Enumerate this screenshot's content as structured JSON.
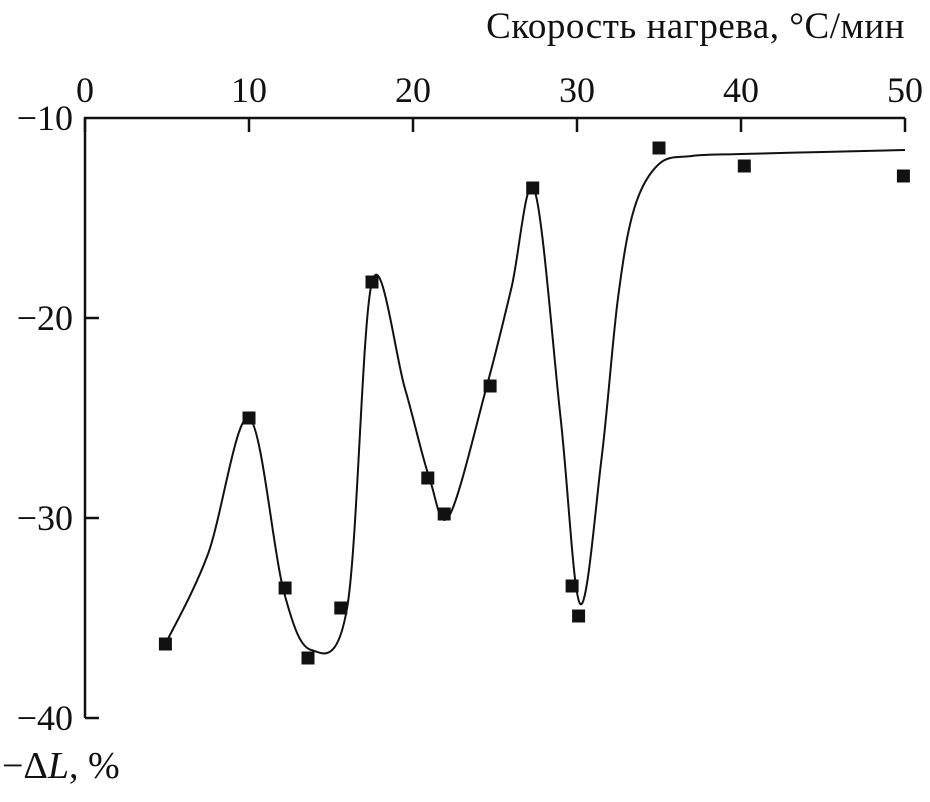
{
  "chart_data": {
    "type": "scatter",
    "title": "Скорость нагрева, °С/мин",
    "ylabel_parts": {
      "prefix": "−Δ",
      "symbol": "L",
      "suffix": ", %"
    },
    "xlim": [
      0,
      50
    ],
    "ylim": [
      -40,
      -10
    ],
    "x_ticks": [
      0,
      10,
      20,
      30,
      40,
      50
    ],
    "x_tick_labels": [
      "0",
      "10",
      "20",
      "30",
      "40",
      "50"
    ],
    "y_ticks": [
      -10,
      -20,
      -30,
      -40
    ],
    "y_tick_labels": [
      "−10",
      "−20",
      "−30",
      "−40"
    ],
    "grid": false,
    "legend": "none",
    "marker": "square",
    "color": "#111111",
    "points": [
      [
        4.9,
        -36.3
      ],
      [
        10.0,
        -25.0
      ],
      [
        12.2,
        -33.5
      ],
      [
        13.6,
        -37.0
      ],
      [
        15.6,
        -34.5
      ],
      [
        17.5,
        -18.2
      ],
      [
        20.9,
        -28.0
      ],
      [
        21.9,
        -29.8
      ],
      [
        24.7,
        -23.4
      ],
      [
        27.3,
        -13.5
      ],
      [
        29.7,
        -33.4
      ],
      [
        30.1,
        -34.9
      ],
      [
        35.0,
        -11.5
      ],
      [
        40.2,
        -12.4
      ],
      [
        49.9,
        -12.9
      ]
    ],
    "fit_curve": [
      [
        4.9,
        -36.3
      ],
      [
        7.5,
        -31.8
      ],
      [
        10.0,
        -25.0
      ],
      [
        12.1,
        -33.6
      ],
      [
        13.8,
        -36.6
      ],
      [
        16.0,
        -34.4
      ],
      [
        17.5,
        -18.2
      ],
      [
        19.5,
        -23.5
      ],
      [
        21.0,
        -28.0
      ],
      [
        22.2,
        -29.9
      ],
      [
        24.5,
        -23.4
      ],
      [
        26.0,
        -18.5
      ],
      [
        27.4,
        -13.6
      ],
      [
        29.0,
        -25.0
      ],
      [
        30.2,
        -34.3
      ],
      [
        31.5,
        -27.0
      ],
      [
        32.5,
        -19.0
      ],
      [
        33.5,
        -14.5
      ],
      [
        35.0,
        -12.3
      ],
      [
        37.0,
        -11.9
      ],
      [
        40.0,
        -11.8
      ],
      [
        45.0,
        -11.7
      ],
      [
        50.0,
        -11.6
      ]
    ]
  }
}
